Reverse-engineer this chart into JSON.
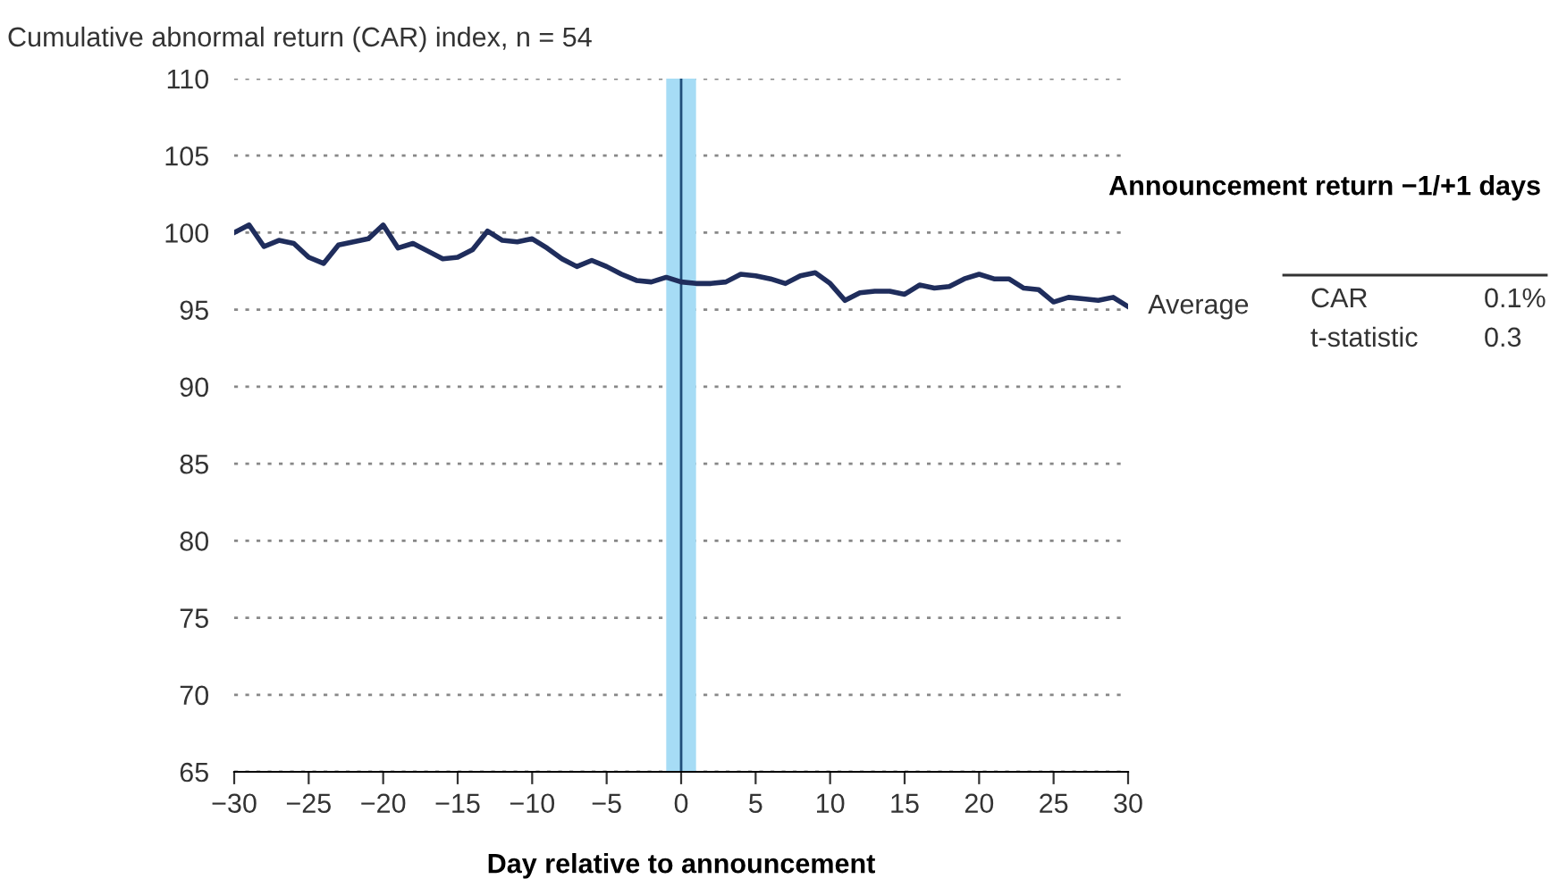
{
  "chart_data": {
    "type": "line",
    "title": "Cumulative abnormal return (CAR) index, n = 54",
    "xlabel": "Day relative to announcement",
    "x": [
      -30,
      -29,
      -28,
      -27,
      -26,
      -25,
      -24,
      -23,
      -22,
      -21,
      -20,
      -19,
      -18,
      -17,
      -16,
      -15,
      -14,
      -13,
      -12,
      -11,
      -10,
      -9,
      -8,
      -7,
      -6,
      -5,
      -4,
      -3,
      -2,
      -1,
      0,
      1,
      2,
      3,
      4,
      5,
      6,
      7,
      8,
      9,
      10,
      11,
      12,
      13,
      14,
      15,
      16,
      17,
      18,
      19,
      20,
      21,
      22,
      23,
      24,
      25,
      26,
      27,
      28,
      29,
      30
    ],
    "series": [
      {
        "name": "Average",
        "color": "#1f2d5c",
        "values": [
          100,
          100.5,
          99.1,
          99.5,
          99.3,
          98.4,
          98.0,
          99.2,
          99.4,
          99.6,
          100.5,
          99.0,
          99.3,
          98.8,
          98.3,
          98.4,
          98.9,
          100.1,
          99.5,
          99.4,
          99.6,
          99.0,
          98.3,
          97.8,
          98.2,
          97.8,
          97.3,
          96.9,
          96.8,
          97.1,
          96.8,
          96.7,
          96.7,
          96.8,
          97.3,
          97.2,
          97.0,
          96.7,
          97.2,
          97.4,
          96.7,
          95.6,
          96.1,
          96.2,
          96.2,
          96.0,
          96.6,
          96.4,
          96.5,
          97.0,
          97.3,
          97.0,
          97.0,
          96.4,
          96.3,
          95.5,
          95.8,
          95.7,
          95.6,
          95.8,
          95.2
        ]
      }
    ],
    "xlim": [
      -30,
      30
    ],
    "xticks": [
      {
        "value": -30,
        "label": "−30"
      },
      {
        "value": -25,
        "label": "−25"
      },
      {
        "value": -20,
        "label": "−20"
      },
      {
        "value": -15,
        "label": "−15"
      },
      {
        "value": -10,
        "label": "−10"
      },
      {
        "value": -5,
        "label": "−5"
      },
      0,
      5,
      10,
      15,
      20,
      25,
      30
    ],
    "ylim": [
      65,
      110
    ],
    "yticks": [
      65,
      70,
      75,
      80,
      85,
      90,
      95,
      100,
      105,
      110
    ],
    "grid": "y",
    "legend": false,
    "line_style": "solid",
    "marker": "none",
    "ref_lines": [
      {
        "axis": "x",
        "value": 0,
        "color": "#1f4e79",
        "line_style": "solid"
      }
    ],
    "bands": [
      {
        "axis": "x",
        "from": -1,
        "to": 1,
        "color": "#a6dcf5"
      }
    ],
    "annotations": [
      "Announcement return −1/+1 days",
      "CAR",
      "0.1%",
      "t-statistic",
      "0.3"
    ]
  }
}
